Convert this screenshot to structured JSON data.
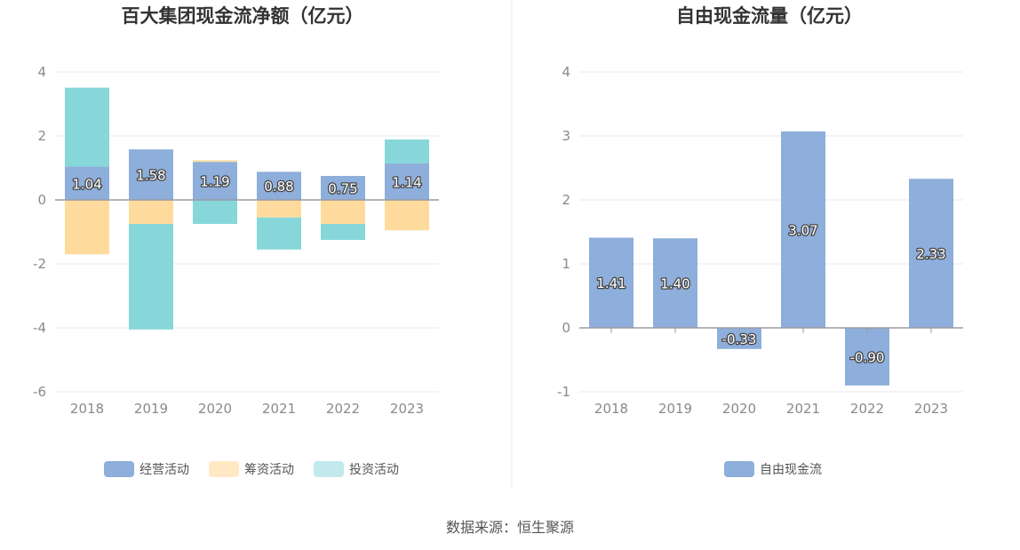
{
  "source": "数据来源：恒生聚源",
  "chart_data": [
    {
      "type": "bar",
      "stacked": true,
      "title": "百大集团现金流净额（亿元）",
      "categories": [
        "2018",
        "2019",
        "2020",
        "2021",
        "2022",
        "2023"
      ],
      "ylim": [
        -6,
        4
      ],
      "yticks": [
        4,
        2,
        0,
        -2,
        -4,
        -6
      ],
      "grid": true,
      "legend_position": "bottom",
      "series": [
        {
          "name": "经营活动",
          "color": "#8eaedb",
          "values": [
            1.04,
            1.58,
            1.19,
            0.88,
            0.75,
            1.14
          ],
          "labels": [
            "1.04",
            "1.58",
            "1.19",
            "0.88",
            "0.75",
            "1.14"
          ]
        },
        {
          "name": "筹资活动",
          "color": "#fedb9c",
          "values": [
            -1.7,
            -0.75,
            0.05,
            -0.55,
            -0.75,
            -0.95
          ]
        },
        {
          "name": "投资活动",
          "color": "#87d6da",
          "values": [
            2.47,
            -3.3,
            -0.75,
            -1.0,
            -0.5,
            0.75
          ]
        }
      ]
    },
    {
      "type": "bar",
      "title": "自由现金流量（亿元）",
      "categories": [
        "2018",
        "2019",
        "2020",
        "2021",
        "2022",
        "2023"
      ],
      "ylim": [
        -1,
        4
      ],
      "yticks": [
        4,
        3,
        2,
        1,
        0,
        -1
      ],
      "grid": true,
      "legend_position": "bottom",
      "series": [
        {
          "name": "自由现金流",
          "color": "#8eaedb",
          "values": [
            1.41,
            1.4,
            -0.33,
            3.07,
            -0.9,
            2.33
          ],
          "labels": [
            "1.41",
            "1.40",
            "-0.33",
            "3.07",
            "-0.90",
            "2.33"
          ]
        }
      ]
    }
  ]
}
